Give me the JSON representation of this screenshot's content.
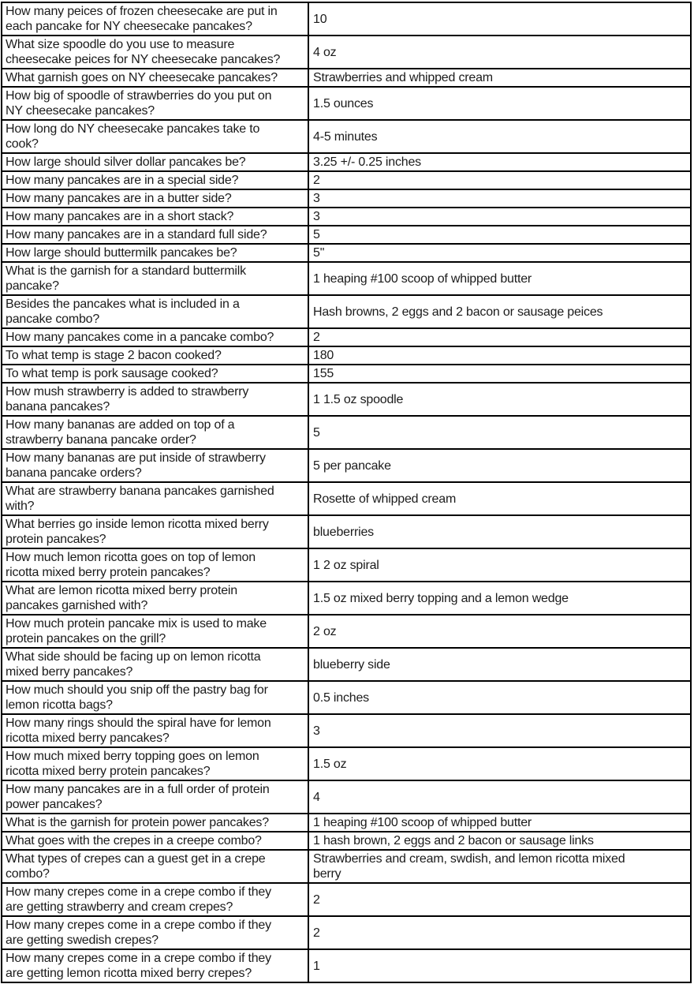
{
  "table": {
    "rows": [
      {
        "q": "How many peices of frozen cheesecake are put in\neach pancake for NY cheesecake pancakes?",
        "a": "10"
      },
      {
        "q": "What size spoodle do you use to measure\ncheesecake peices for NY cheesecake pancakes?",
        "a": "4 oz"
      },
      {
        "q": "What garnish goes on NY cheesecake pancakes?",
        "a": "Strawberries and whipped cream"
      },
      {
        "q": "How big of spoodle of strawberries do you put on\nNY cheesecake pancakes?",
        "a": "1.5 ounces"
      },
      {
        "q": "How long do NY cheesecake pancakes take to\ncook?",
        "a": "4-5 minutes"
      },
      {
        "q": "How large should silver dollar pancakes be?",
        "a": "3.25 +/- 0.25 inches"
      },
      {
        "q": "How many pancakes are in a special side?",
        "a": "2"
      },
      {
        "q": "How many pancakes are in a butter side?",
        "a": "3"
      },
      {
        "q": "How many pancakes are in a short stack?",
        "a": "3"
      },
      {
        "q": "How many pancakes are in a standard full side?",
        "a": "5"
      },
      {
        "q": "How large should buttermilk pancakes be?",
        "a": "5\""
      },
      {
        "q": "What is the garnish for a standard buttermilk\npancake?",
        "a": "1 heaping #100 scoop of whipped butter"
      },
      {
        "q": "Besides the pancakes what is included in a\npancake combo?",
        "a": "Hash browns, 2 eggs and 2 bacon or sausage peices"
      },
      {
        "q": "How many pancakes come in a pancake combo?",
        "a": "2"
      },
      {
        "q": "To what temp is stage 2 bacon cooked?",
        "a": "180"
      },
      {
        "q": "To what temp is pork sausage cooked?",
        "a": "155"
      },
      {
        "q": "How mush strawberry is added to strawberry\nbanana pancakes?",
        "a": "1 1.5 oz spoodle"
      },
      {
        "q": "How many bananas are added on top of a\nstrawberry banana pancake order?",
        "a": "5"
      },
      {
        "q": "How many bananas are put inside of strawberry\nbanana pancake orders?",
        "a": "5 per pancake"
      },
      {
        "q": "What are strawberry banana pancakes garnished\nwith?",
        "a": "Rosette of whipped cream"
      },
      {
        "q": "What berries go inside lemon ricotta mixed berry\nprotein pancakes?",
        "a": "blueberries"
      },
      {
        "q": "How much lemon ricotta goes on top of lemon\nricotta mixed berry protein pancakes?",
        "a": "1 2 oz spiral"
      },
      {
        "q": "What are lemon ricotta mixed berry protein\npancakes garnished with?",
        "a": "1.5 oz mixed berry topping and a lemon wedge"
      },
      {
        "q": "How much protein pancake mix is used to make\nprotein pancakes on the grill?",
        "a": "2 oz"
      },
      {
        "q": "What side should be facing up on lemon ricotta\nmixed berry pancakes?",
        "a": "blueberry side"
      },
      {
        "q": "How much should you snip off the pastry bag for\nlemon ricotta bags?",
        "a": "0.5 inches"
      },
      {
        "q": "How many rings should the spiral have for lemon\nricotta mixed berry pancakes?",
        "a": "3"
      },
      {
        "q": "How much mixed berry topping goes on lemon\nricotta mixed berry protein pancakes?",
        "a": "1.5 oz"
      },
      {
        "q": "How many pancakes are in a full order of protein\npower pancakes?",
        "a": "4"
      },
      {
        "q": "What is the garnish for protein power pancakes?",
        "a": "1 heaping #100 scoop of whipped butter"
      },
      {
        "q": "What goes with the crepes in a creepe combo?",
        "a": "1 hash brown, 2 eggs and 2 bacon or sausage links"
      },
      {
        "q": "What types of crepes can a guest get in a crepe\ncombo?",
        "a": "Strawberries and cream, swdish, and lemon ricotta mixed\nberry"
      },
      {
        "q": "How many crepes come in a crepe combo if they\nare getting strawberry and cream crepes?",
        "a": "2"
      },
      {
        "q": "How many crepes come in a crepe combo if they\nare getting swedish crepes?",
        "a": "2"
      },
      {
        "q": "How many crepes come in a crepe combo if they\nare getting lemon ricotta mixed berry crepes?",
        "a": "1"
      }
    ]
  }
}
